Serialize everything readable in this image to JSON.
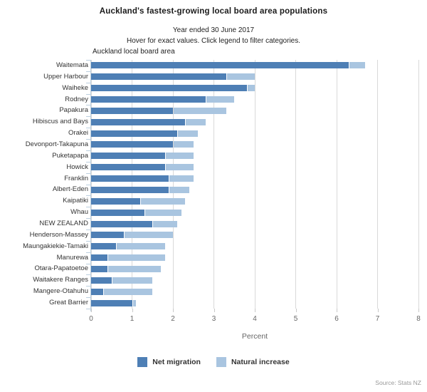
{
  "header": {
    "title": "Auckland's fastest-growing local board area populations",
    "subtitle": "Year ended 30 June 2017",
    "instruction": "Hover for exact values. Click legend to filter categories.",
    "y_axis_title": "Auckland local board area"
  },
  "chart_data": {
    "type": "bar",
    "orientation": "horizontal",
    "stacked": true,
    "title": "Auckland's fastest-growing local board area populations",
    "subtitle": "Year ended 30 June 2017",
    "xlabel": "Percent",
    "ylabel": "Auckland local board area",
    "xlim": [
      0,
      8
    ],
    "xticks": [
      0,
      1,
      2,
      3,
      4,
      5,
      6,
      7,
      8
    ],
    "grid": true,
    "legend_position": "bottom",
    "categories": [
      "Waitemata",
      "Upper Harbour",
      "Waiheke",
      "Rodney",
      "Papakura",
      "Hibiscus and Bays",
      "Orakei",
      "Devonport-Takapuna",
      "Puketapapa",
      "Howick",
      "Franklin",
      "Albert-Eden",
      "Kaipatiki",
      "Whau",
      "NEW ZEALAND",
      "Henderson-Massey",
      "Maungakiekie-Tamaki",
      "Manurewa",
      "Otara-Papatoetoe",
      "Waitakere Ranges",
      "Mangere-Otahuhu",
      "Great Barrier"
    ],
    "series": [
      {
        "name": "Net migration",
        "color": "#4e7fb5",
        "values": [
          6.3,
          3.3,
          3.8,
          2.8,
          2.0,
          2.3,
          2.1,
          2.0,
          1.8,
          1.8,
          1.9,
          1.9,
          1.2,
          1.3,
          1.5,
          0.8,
          0.6,
          0.4,
          0.4,
          0.5,
          0.3,
          1.0
        ]
      },
      {
        "name": "Natural increase",
        "color": "#a9c5e0",
        "values": [
          0.4,
          0.7,
          0.2,
          0.7,
          1.3,
          0.5,
          0.5,
          0.5,
          0.7,
          0.7,
          0.6,
          0.5,
          1.1,
          0.9,
          0.6,
          1.2,
          1.2,
          1.4,
          1.3,
          1.0,
          1.2,
          0.1
        ]
      }
    ]
  },
  "legend": {
    "items": [
      {
        "label": "Net migration",
        "color": "#4e7fb5"
      },
      {
        "label": "Natural increase",
        "color": "#a9c5e0"
      }
    ]
  },
  "footer": {
    "source": "Source: Stats NZ"
  },
  "style": {
    "gridline_color": "#d9d9d9",
    "yaxis_color": "#bccfdf",
    "xtick_color": "#c9c9c9"
  }
}
